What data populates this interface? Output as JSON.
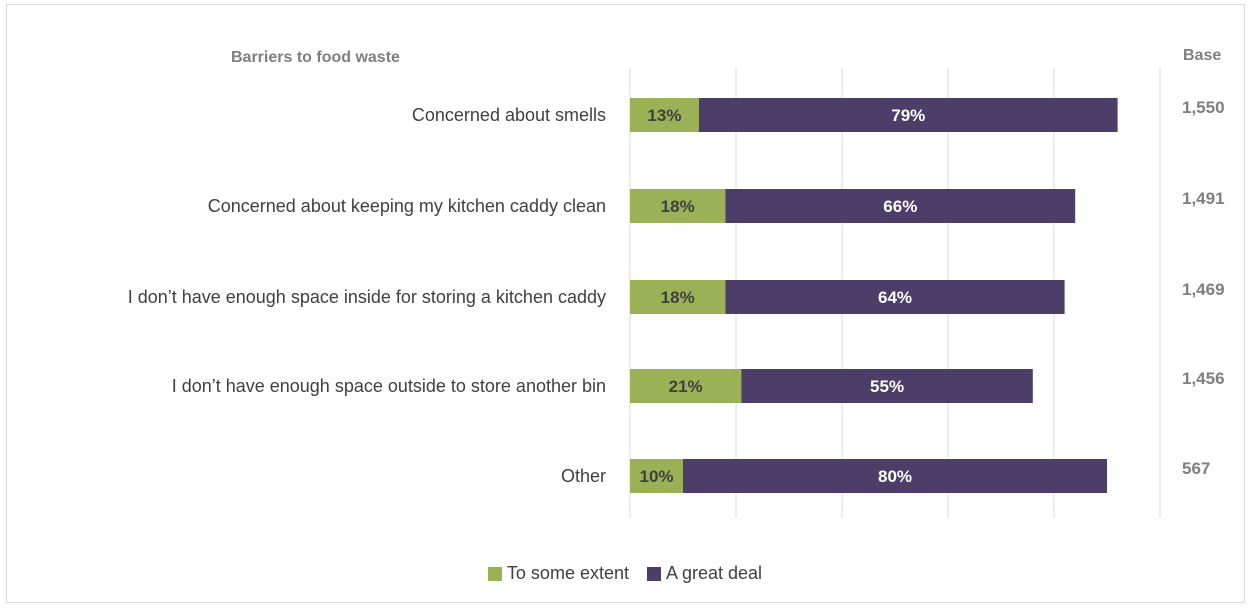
{
  "header": {
    "category_heading": "Barriers to food waste",
    "base_heading": "Base"
  },
  "colors": {
    "to_some_extent": "#9bb155",
    "a_great_deal": "#4c3d69",
    "gridline": "#d9d9d9",
    "base_text": "#7f7f7f",
    "category_text": "#404040"
  },
  "legend": {
    "items": [
      {
        "label": "To some extent",
        "color": "#9bb155"
      },
      {
        "label": "A great deal",
        "color": "#4c3d69"
      }
    ]
  },
  "chart_data": {
    "type": "bar",
    "orientation": "horizontal",
    "stacked": true,
    "xlim": [
      0,
      100
    ],
    "grid": true,
    "legend_position": "bottom",
    "categories": [
      "Concerned about smells",
      "Concerned about keeping my kitchen caddy clean",
      "I don’t have enough space inside for storing a kitchen caddy",
      "I don’t have enough space outside to store another bin",
      "Other"
    ],
    "series": [
      {
        "name": "To some extent",
        "values": [
          13,
          18,
          18,
          21,
          10
        ],
        "labels": [
          "13%",
          "18%",
          "18%",
          "21%",
          "10%"
        ],
        "color": "#9bb155"
      },
      {
        "name": "A great deal",
        "values": [
          79,
          66,
          64,
          55,
          80
        ],
        "labels": [
          "79%",
          "66%",
          "64%",
          "55%",
          "80%"
        ],
        "color": "#4c3d69"
      }
    ],
    "bases": [
      "1,550",
      "1,491",
      "1,469",
      "1,456",
      "567"
    ]
  }
}
